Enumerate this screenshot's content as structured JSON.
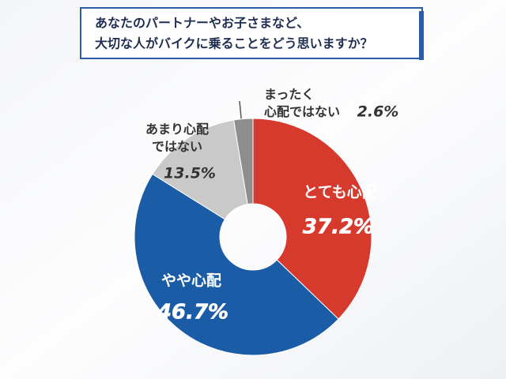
{
  "chart_data": {
    "type": "donut",
    "title": [
      "あなたのパートナーやお子さまなど、",
      "大切な人がバイクに乗ることをどう思いますか？"
    ],
    "categories": [
      "とても心配",
      "やや心配",
      "あまり心配ではない",
      "まったく心配ではない"
    ],
    "values": [
      37.2,
      46.7,
      13.5,
      2.6
    ],
    "value_labels": [
      "37.2%",
      "46.7%",
      "13.5%",
      "2.6%"
    ],
    "colors": [
      "#d63a2c",
      "#1a5ca6",
      "#c9c9c9",
      "#8e8e8e"
    ]
  }
}
